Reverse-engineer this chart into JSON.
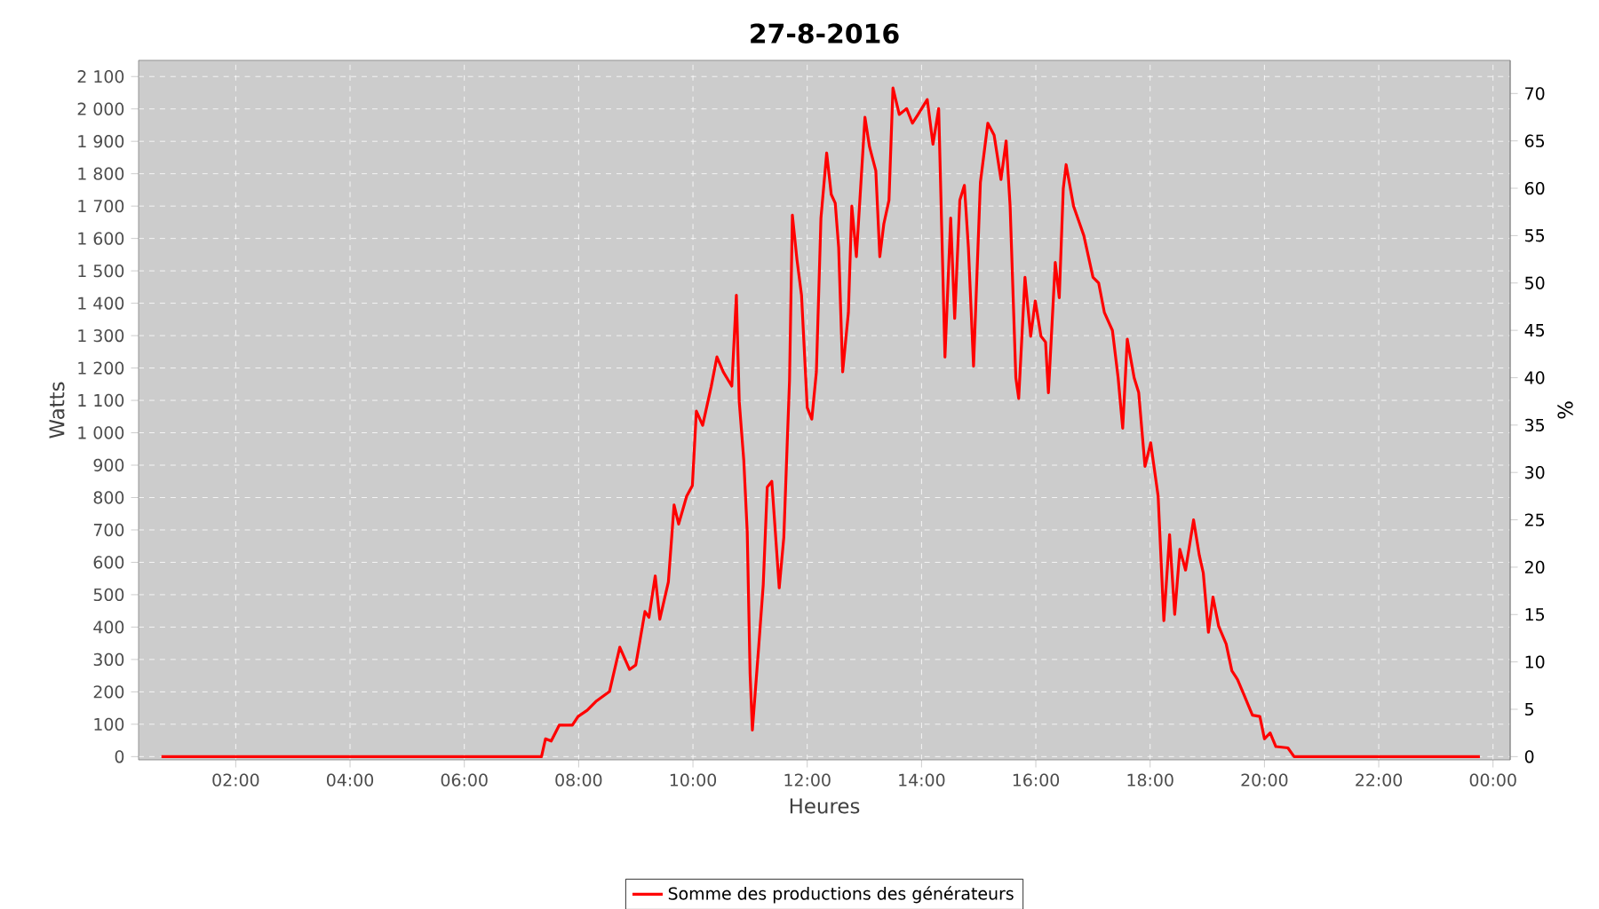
{
  "chart_data": {
    "type": "line",
    "title": "27-8-2016",
    "xlabel": "Heures",
    "ylabel": "Watts",
    "y2label": "%",
    "xlim": [
      0.3,
      24.3
    ],
    "ylim": [
      -10,
      2150
    ],
    "y2lim": [
      -0.34,
      73.5
    ],
    "xticks": [
      {
        "value": 2,
        "label": "02:00"
      },
      {
        "value": 4,
        "label": "04:00"
      },
      {
        "value": 6,
        "label": "06:00"
      },
      {
        "value": 8,
        "label": "08:00"
      },
      {
        "value": 10,
        "label": "10:00"
      },
      {
        "value": 12,
        "label": "12:00"
      },
      {
        "value": 14,
        "label": "14:00"
      },
      {
        "value": 16,
        "label": "16:00"
      },
      {
        "value": 18,
        "label": "18:00"
      },
      {
        "value": 20,
        "label": "20:00"
      },
      {
        "value": 22,
        "label": "22:00"
      },
      {
        "value": 24,
        "label": "00:00"
      }
    ],
    "yticks": [
      0,
      100,
      200,
      300,
      400,
      500,
      600,
      700,
      800,
      900,
      {
        "value": 1000,
        "label": "1 000"
      },
      {
        "value": 1100,
        "label": "1 100"
      },
      {
        "value": 1200,
        "label": "1 200"
      },
      {
        "value": 1300,
        "label": "1 300"
      },
      {
        "value": 1400,
        "label": "1 400"
      },
      {
        "value": 1500,
        "label": "1 500"
      },
      {
        "value": 1600,
        "label": "1 600"
      },
      {
        "value": 1700,
        "label": "1 700"
      },
      {
        "value": 1800,
        "label": "1 800"
      },
      {
        "value": 1900,
        "label": "1 900"
      },
      {
        "value": 2000,
        "label": "2 000"
      },
      {
        "value": 2100,
        "label": "2 100"
      }
    ],
    "y2ticks": [
      0,
      5,
      10,
      15,
      20,
      25,
      30,
      35,
      40,
      45,
      50,
      55,
      60,
      65,
      70
    ],
    "grid": true,
    "legend": "bottom",
    "series": [
      {
        "name": "Somme des productions des générateurs",
        "color": "#ff0000",
        "x": [
          0.7,
          7.35,
          7.42,
          7.52,
          7.66,
          7.89,
          7.99,
          8.15,
          8.3,
          8.54,
          8.72,
          8.89,
          9.0,
          9.16,
          9.23,
          9.34,
          9.42,
          9.57,
          9.67,
          9.75,
          9.89,
          9.99,
          10.06,
          10.17,
          10.32,
          10.42,
          10.53,
          10.68,
          10.76,
          10.81,
          10.89,
          10.95,
          11.0,
          11.04,
          11.15,
          11.23,
          11.3,
          11.38,
          11.51,
          11.59,
          11.65,
          11.69,
          11.74,
          11.82,
          11.9,
          12.0,
          12.08,
          12.16,
          12.24,
          12.34,
          12.42,
          12.49,
          12.55,
          12.62,
          12.72,
          12.78,
          12.86,
          13.01,
          13.09,
          13.2,
          13.27,
          13.34,
          13.43,
          13.5,
          13.61,
          13.74,
          13.84,
          13.94,
          14.1,
          14.2,
          14.3,
          14.41,
          14.51,
          14.58,
          14.67,
          14.75,
          14.82,
          14.91,
          15.03,
          15.16,
          15.27,
          15.39,
          15.48,
          15.55,
          15.65,
          15.7,
          15.81,
          15.91,
          15.99,
          16.09,
          16.17,
          16.22,
          16.34,
          16.41,
          16.48,
          16.53,
          16.66,
          16.84,
          17.0,
          17.1,
          17.2,
          17.34,
          17.44,
          17.52,
          17.6,
          17.72,
          17.8,
          17.91,
          18.01,
          18.14,
          18.24,
          18.34,
          18.43,
          18.52,
          18.62,
          18.76,
          18.86,
          18.93,
          19.02,
          19.1,
          19.2,
          19.33,
          19.43,
          19.53,
          19.64,
          19.79,
          19.92,
          20.0,
          20.1,
          20.2,
          20.41,
          20.52,
          23.77
        ],
        "values": [
          0,
          0,
          55,
          48,
          97,
          97,
          124,
          143,
          170,
          201,
          338,
          269,
          283,
          448,
          430,
          558,
          424,
          539,
          777,
          718,
          804,
          837,
          1067,
          1023,
          1143,
          1234,
          1188,
          1144,
          1425,
          1097,
          914,
          694,
          256,
          82,
          338,
          530,
          832,
          850,
          521,
          677,
          969,
          1161,
          1672,
          1535,
          1425,
          1078,
          1042,
          1188,
          1663,
          1864,
          1736,
          1709,
          1572,
          1188,
          1371,
          1700,
          1544,
          1974,
          1883,
          1809,
          1544,
          1645,
          1718,
          2065,
          1983,
          2001,
          1956,
          1983,
          2029,
          1891,
          2001,
          1234,
          1663,
          1353,
          1718,
          1764,
          1572,
          1206,
          1773,
          1956,
          1919,
          1782,
          1901,
          1700,
          1170,
          1106,
          1480,
          1298,
          1407,
          1298,
          1280,
          1124,
          1526,
          1417,
          1754,
          1828,
          1700,
          1609,
          1480,
          1462,
          1371,
          1316,
          1170,
          1014,
          1289,
          1170,
          1124,
          896,
          969,
          804,
          420,
          685,
          439,
          640,
          576,
          731,
          622,
          567,
          384,
          493,
          402,
          348,
          265,
          238,
          192,
          128,
          124,
          55,
          73,
          31,
          27,
          0,
          0
        ]
      }
    ]
  }
}
